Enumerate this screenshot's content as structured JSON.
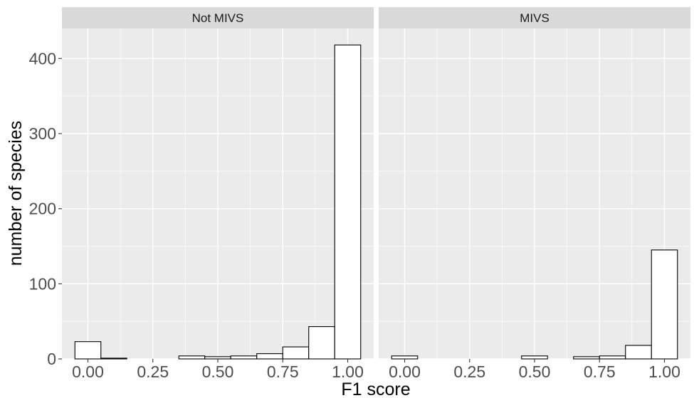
{
  "chart_data": {
    "type": "bar",
    "subtype": "faceted histogram",
    "xlabel": "F1 score",
    "ylabel": "number of species",
    "xlim": [
      -0.1,
      1.1
    ],
    "ylim": [
      0,
      440
    ],
    "x_ticks": [
      "0.00",
      "0.25",
      "0.50",
      "0.75",
      "1.00"
    ],
    "x_tick_values": [
      0,
      0.25,
      0.5,
      0.75,
      1.0
    ],
    "y_ticks": [
      "0",
      "100",
      "200",
      "300",
      "400"
    ],
    "y_tick_values": [
      0,
      100,
      200,
      300,
      400
    ],
    "bin_centers": [
      0.0,
      0.1,
      0.2,
      0.3,
      0.4,
      0.5,
      0.6,
      0.7,
      0.8,
      0.9,
      1.0
    ],
    "bin_width": 0.1,
    "bar_fill": "#ffffff",
    "bar_outline": "#000000",
    "panel_background": "#ebebeb",
    "strip_background": "#d9d9d9",
    "grid": true,
    "facets": [
      {
        "name": "Not MIVS",
        "values": [
          23,
          1,
          0,
          0,
          4,
          3,
          4,
          7,
          16,
          43,
          418
        ]
      },
      {
        "name": "MIVS",
        "values": [
          4,
          0,
          0,
          0,
          0,
          4,
          0,
          3,
          4,
          18,
          145
        ]
      }
    ]
  }
}
